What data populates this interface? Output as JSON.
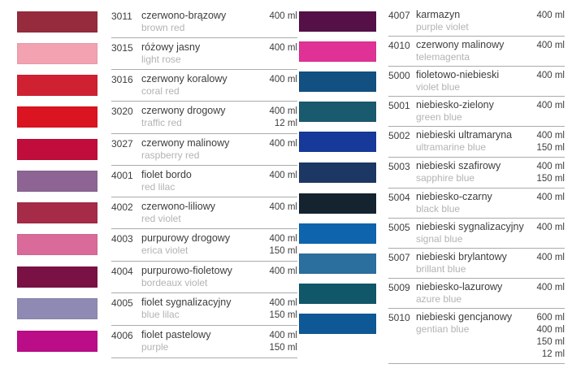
{
  "page": {
    "background": "#ffffff",
    "divider_color": "#ababab",
    "text_color": "#3d3d3d",
    "secondary_text_color": "#b3b3b3"
  },
  "columns": [
    {
      "rows": [
        {
          "code": "3011",
          "name_pl": "czerwono-brązowy",
          "name_en": "brown red",
          "volumes": [
            "400 ml"
          ],
          "swatch": "#962b3d"
        },
        {
          "code": "3015",
          "name_pl": "różowy jasny",
          "name_en": "light rose",
          "volumes": [
            "400 ml"
          ],
          "swatch": "#f2a2b1"
        },
        {
          "code": "3016",
          "name_pl": "czerwony koralowy",
          "name_en": "coral red",
          "volumes": [
            "400 ml"
          ],
          "swatch": "#d02132"
        },
        {
          "code": "3020",
          "name_pl": "czerwony drogowy",
          "name_en": "traffic red",
          "volumes": [
            "400 ml",
            "12 ml"
          ],
          "swatch": "#da1420"
        },
        {
          "code": "3027",
          "name_pl": "czerwony malinowy",
          "name_en": "raspberry red",
          "volumes": [
            "400 ml"
          ],
          "swatch": "#c00d3c"
        },
        {
          "code": "4001",
          "name_pl": "fiolet bordo",
          "name_en": "red lilac",
          "volumes": [
            "400 ml"
          ],
          "swatch": "#8d6494"
        },
        {
          "code": "4002",
          "name_pl": "czerwono-liliowy",
          "name_en": "red violet",
          "volumes": [
            "400 ml"
          ],
          "swatch": "#a52b48"
        },
        {
          "code": "4003",
          "name_pl": "purpurowy drogowy",
          "name_en": "erica violet",
          "volumes": [
            "400 ml",
            "150 ml"
          ],
          "swatch": "#d96a99"
        },
        {
          "code": "4004",
          "name_pl": "purpurowo-fioletowy",
          "name_en": "bordeaux violet",
          "volumes": [
            "400 ml"
          ],
          "swatch": "#7a1144"
        },
        {
          "code": "4005",
          "name_pl": "fiolet sygnalizacyjny",
          "name_en": "blue lilac",
          "volumes": [
            "400 ml",
            "150 ml"
          ],
          "swatch": "#8f8ab3"
        },
        {
          "code": "4006",
          "name_pl": "fiolet pastelowy",
          "name_en": "purple",
          "volumes": [
            "400 ml",
            "150 ml"
          ],
          "swatch": "#bb0d87"
        }
      ]
    },
    {
      "rows": [
        {
          "code": "4007",
          "name_pl": "karmazyn",
          "name_en": "purple violet",
          "volumes": [
            "400 ml"
          ],
          "swatch": "#551047"
        },
        {
          "code": "4010",
          "name_pl": "czerwony malinowy",
          "name_en": "telemagenta",
          "volumes": [
            "400 ml"
          ],
          "swatch": "#e03296"
        },
        {
          "code": "5000",
          "name_pl": "fioletowo-niebieski",
          "name_en": "violet blue",
          "volumes": [
            "400 ml"
          ],
          "swatch": "#125081"
        },
        {
          "code": "5001",
          "name_pl": "niebiesko-zielony",
          "name_en": "green blue",
          "volumes": [
            "400 ml"
          ],
          "swatch": "#1a5a6f"
        },
        {
          "code": "5002",
          "name_pl": "niebieski ultramaryna",
          "name_en": "ultramarine blue",
          "volumes": [
            "400 ml",
            "150 ml"
          ],
          "swatch": "#16399a"
        },
        {
          "code": "5003",
          "name_pl": "niebieski szafirowy",
          "name_en": "sapphire blue",
          "volumes": [
            "400 ml",
            "150 ml"
          ],
          "swatch": "#1d3765"
        },
        {
          "code": "5004",
          "name_pl": "niebiesko-czarny",
          "name_en": "black blue",
          "volumes": [
            "400 ml"
          ],
          "swatch": "#152330"
        },
        {
          "code": "5005",
          "name_pl": "niebieski sygnalizacyjny",
          "name_en": "signal blue",
          "volumes": [
            "400 ml"
          ],
          "swatch": "#0e65ad"
        },
        {
          "code": "5007",
          "name_pl": "niebieski brylantowy",
          "name_en": "brillant blue",
          "volumes": [
            "400 ml"
          ],
          "swatch": "#2b6f9e"
        },
        {
          "code": "5009",
          "name_pl": "niebiesko-lazurowy",
          "name_en": "azure blue",
          "volumes": [
            "400 ml"
          ],
          "swatch": "#11576a"
        },
        {
          "code": "5010",
          "name_pl": "niebieski gencjanowy",
          "name_en": "gentian blue",
          "volumes": [
            "600 ml",
            "400 ml",
            "150 ml",
            "12 ml"
          ],
          "swatch": "#0f5896"
        }
      ]
    }
  ]
}
